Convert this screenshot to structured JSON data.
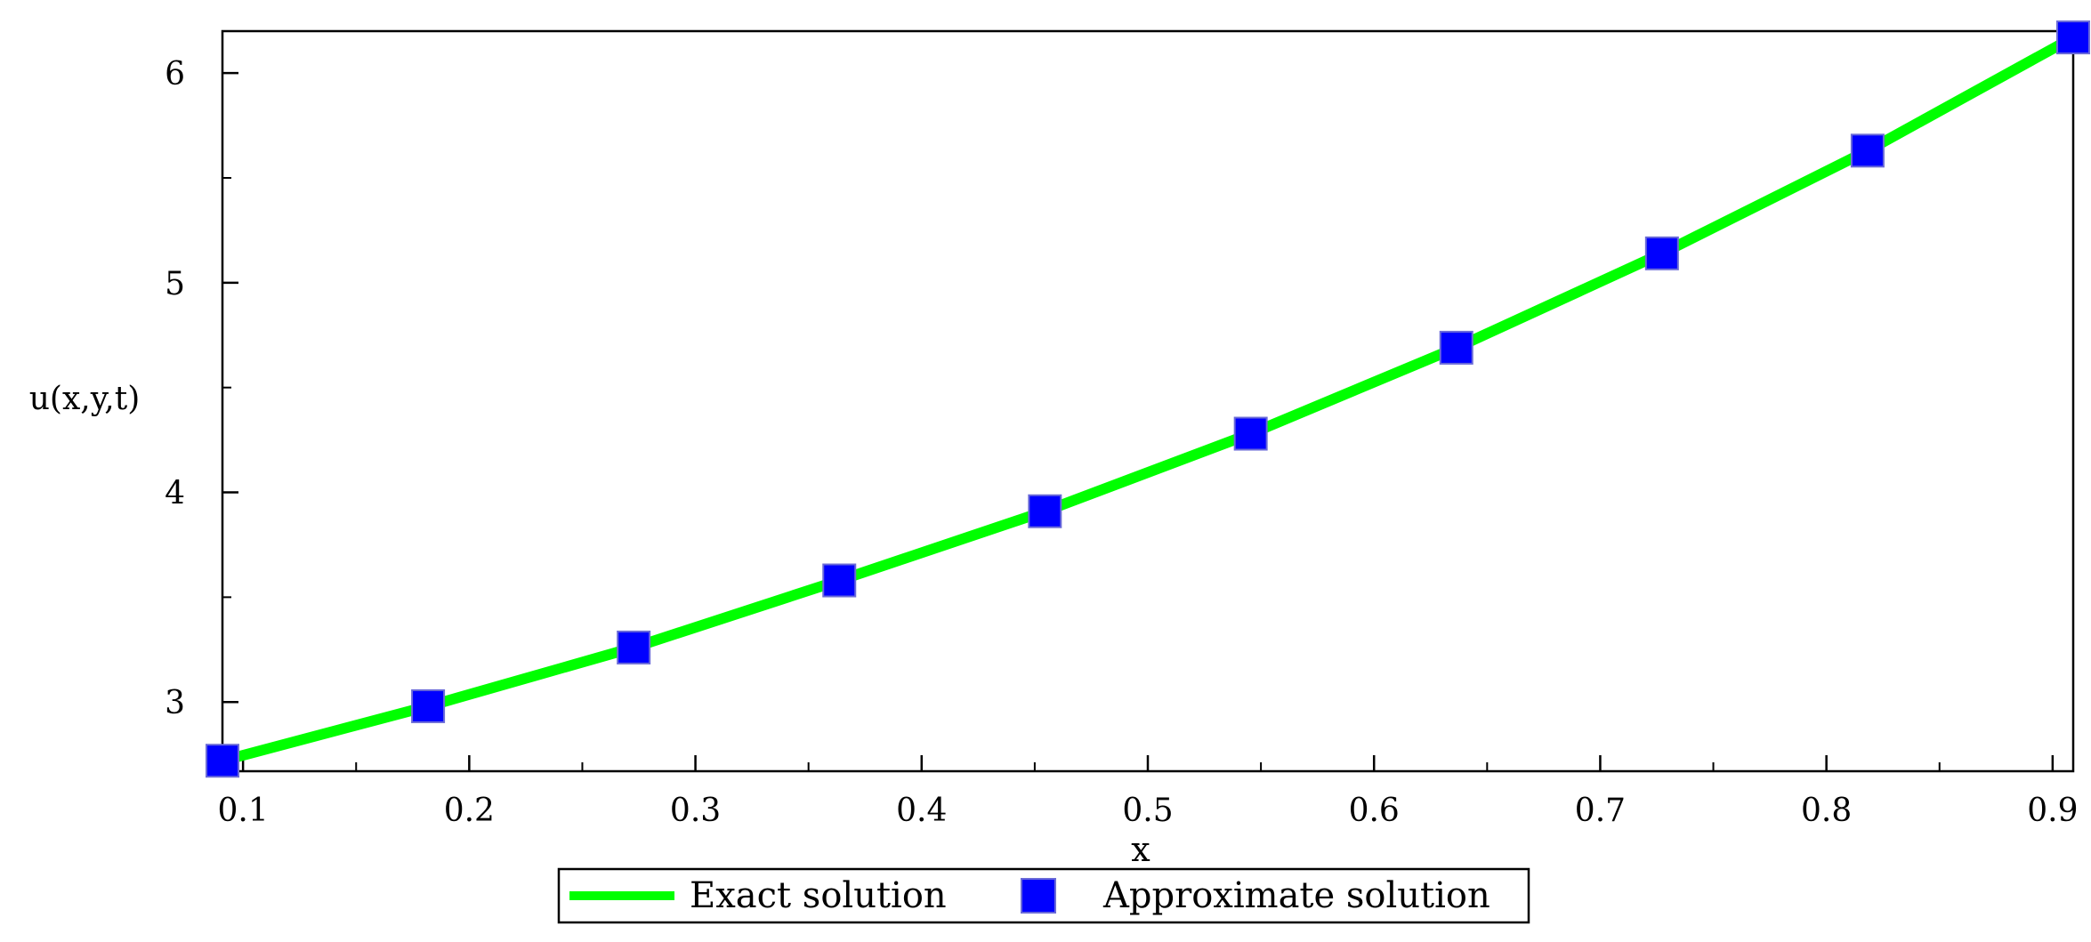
{
  "chart_data": {
    "type": "line",
    "xlabel": "x",
    "ylabel": "u(x,y,t)",
    "xlim": [
      0.0909,
      0.9091
    ],
    "ylim": [
      2.67,
      6.2
    ],
    "x_ticks": [
      "0.1",
      "0.2",
      "0.3",
      "0.4",
      "0.5",
      "0.6",
      "0.7",
      "0.8",
      "0.9"
    ],
    "y_ticks": [
      "3",
      "4",
      "5",
      "6"
    ],
    "grid": false,
    "legend_position": "bottom-center",
    "series": [
      {
        "name": "Exact solution",
        "style": "line",
        "color": "#00ff00",
        "x": [
          0.0909,
          0.1818,
          0.2727,
          0.3636,
          0.4545,
          0.5455,
          0.6364,
          0.7273,
          0.8182,
          0.9091
        ],
        "y": [
          2.72,
          2.98,
          3.26,
          3.58,
          3.91,
          4.28,
          4.69,
          5.14,
          5.63,
          6.17
        ]
      },
      {
        "name": "Approximate solution",
        "style": "markers",
        "marker": "square",
        "color": "#0000ff",
        "x": [
          0.0909,
          0.1818,
          0.2727,
          0.3636,
          0.4545,
          0.5455,
          0.6364,
          0.7273,
          0.8182,
          0.9091
        ],
        "y": [
          2.72,
          2.98,
          3.26,
          3.58,
          3.91,
          4.28,
          4.69,
          5.14,
          5.63,
          6.17
        ]
      }
    ]
  }
}
